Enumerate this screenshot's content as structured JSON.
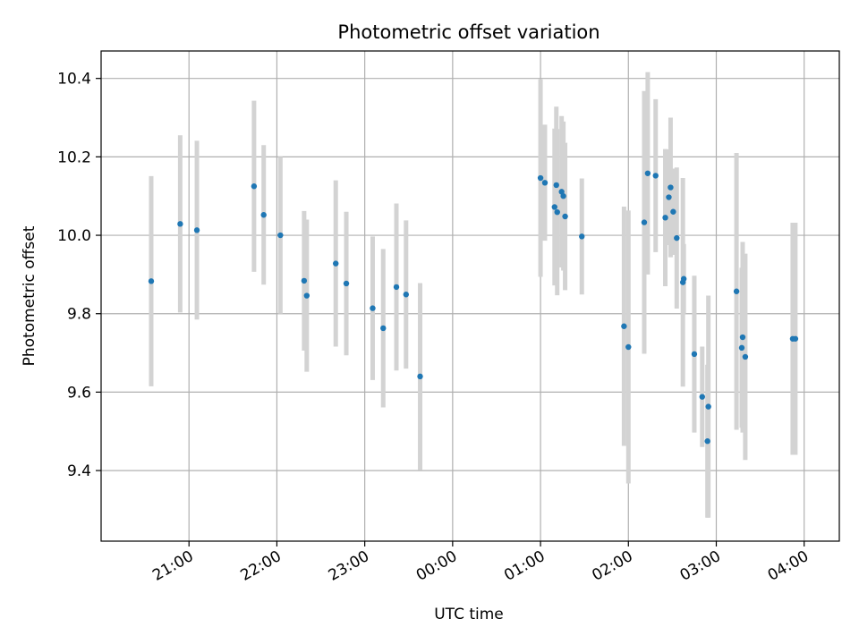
{
  "chart_data": {
    "type": "scatter",
    "title": "Photometric offset variation",
    "xlabel": "UTC time",
    "ylabel": "Photometric offset",
    "x_unit": "hours",
    "xlim": [
      20.0,
      28.4
    ],
    "ylim": [
      9.22,
      10.47
    ],
    "x_ticks": [
      {
        "value": 21,
        "label": "21:00"
      },
      {
        "value": 22,
        "label": "22:00"
      },
      {
        "value": 23,
        "label": "23:00"
      },
      {
        "value": 24,
        "label": "00:00"
      },
      {
        "value": 25,
        "label": "01:00"
      },
      {
        "value": 26,
        "label": "02:00"
      },
      {
        "value": 27,
        "label": "03:00"
      },
      {
        "value": 28,
        "label": "04:00"
      }
    ],
    "y_ticks": [
      {
        "value": 9.4,
        "label": "9.4"
      },
      {
        "value": 9.6,
        "label": "9.6"
      },
      {
        "value": 9.8,
        "label": "9.8"
      },
      {
        "value": 10.0,
        "label": "10.0"
      },
      {
        "value": 10.2,
        "label": "10.2"
      },
      {
        "value": 10.4,
        "label": "10.4"
      }
    ],
    "grid": true,
    "marker_color": "#1f77b4",
    "errorbar_color": "#d3d3d3",
    "points": [
      {
        "x": 20.57,
        "y": 9.883,
        "err": 0.268
      },
      {
        "x": 20.9,
        "y": 10.029,
        "err": 0.226
      },
      {
        "x": 21.09,
        "y": 10.013,
        "err": 0.228
      },
      {
        "x": 21.74,
        "y": 10.125,
        "err": 0.218
      },
      {
        "x": 21.85,
        "y": 10.052,
        "err": 0.178
      },
      {
        "x": 22.04,
        "y": 10.0,
        "err": 0.2
      },
      {
        "x": 22.31,
        "y": 9.884,
        "err": 0.178
      },
      {
        "x": 22.34,
        "y": 9.846,
        "err": 0.194
      },
      {
        "x": 22.67,
        "y": 9.928,
        "err": 0.212
      },
      {
        "x": 22.79,
        "y": 9.877,
        "err": 0.183
      },
      {
        "x": 23.09,
        "y": 9.814,
        "err": 0.183
      },
      {
        "x": 23.21,
        "y": 9.763,
        "err": 0.202
      },
      {
        "x": 23.36,
        "y": 9.868,
        "err": 0.213
      },
      {
        "x": 23.47,
        "y": 9.849,
        "err": 0.189
      },
      {
        "x": 23.63,
        "y": 9.64,
        "err": 0.238
      },
      {
        "x": 25.0,
        "y": 10.146,
        "err": 0.252
      },
      {
        "x": 25.05,
        "y": 10.134,
        "err": 0.148
      },
      {
        "x": 25.16,
        "y": 10.072,
        "err": 0.2
      },
      {
        "x": 25.18,
        "y": 10.128,
        "err": 0.2
      },
      {
        "x": 25.19,
        "y": 10.059,
        "err": 0.212
      },
      {
        "x": 25.24,
        "y": 10.111,
        "err": 0.193
      },
      {
        "x": 25.26,
        "y": 10.1,
        "err": 0.19
      },
      {
        "x": 25.28,
        "y": 10.048,
        "err": 0.188
      },
      {
        "x": 25.47,
        "y": 9.997,
        "err": 0.148
      },
      {
        "x": 25.95,
        "y": 9.768,
        "err": 0.305
      },
      {
        "x": 26.0,
        "y": 9.715,
        "err": 0.348
      },
      {
        "x": 26.18,
        "y": 10.033,
        "err": 0.335
      },
      {
        "x": 26.22,
        "y": 10.158,
        "err": 0.258
      },
      {
        "x": 26.31,
        "y": 10.152,
        "err": 0.195
      },
      {
        "x": 26.42,
        "y": 10.045,
        "err": 0.175
      },
      {
        "x": 26.46,
        "y": 10.097,
        "err": 0.122
      },
      {
        "x": 26.48,
        "y": 10.122,
        "err": 0.178
      },
      {
        "x": 26.51,
        "y": 10.06,
        "err": 0.11
      },
      {
        "x": 26.55,
        "y": 9.993,
        "err": 0.18
      },
      {
        "x": 26.62,
        "y": 9.88,
        "err": 0.266
      },
      {
        "x": 26.63,
        "y": 9.889,
        "err": 0.089
      },
      {
        "x": 26.75,
        "y": 9.697,
        "err": 0.2
      },
      {
        "x": 26.84,
        "y": 9.588,
        "err": 0.128
      },
      {
        "x": 26.9,
        "y": 9.475,
        "err": 0.195
      },
      {
        "x": 26.91,
        "y": 9.563,
        "err": 0.283
      },
      {
        "x": 27.23,
        "y": 9.857,
        "err": 0.353
      },
      {
        "x": 27.29,
        "y": 9.713,
        "err": 0.204
      },
      {
        "x": 27.3,
        "y": 9.74,
        "err": 0.243
      },
      {
        "x": 27.33,
        "y": 9.69,
        "err": 0.263
      },
      {
        "x": 27.87,
        "y": 9.736,
        "err": 0.296
      },
      {
        "x": 27.9,
        "y": 9.736,
        "err": 0.296
      }
    ]
  }
}
